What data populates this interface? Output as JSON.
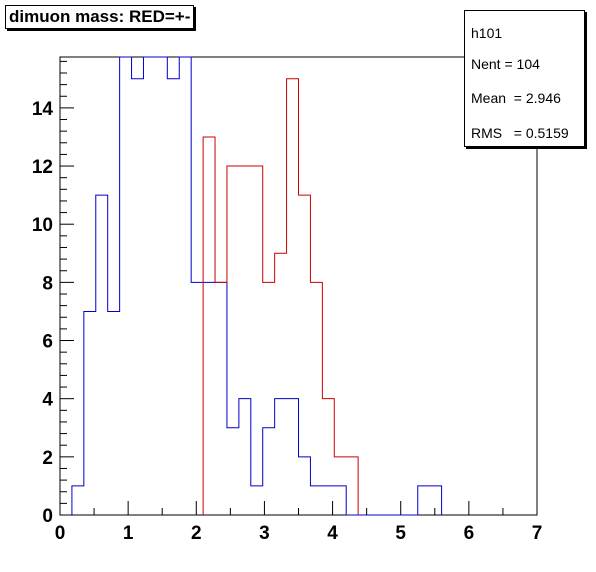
{
  "title": "dimuon mass: RED=+-",
  "stats": {
    "name": "h101",
    "rows": [
      {
        "key": "Nent",
        "sep": " = ",
        "value": "104"
      },
      {
        "key": "Mean",
        "sep": "  = ",
        "value": "2.946"
      },
      {
        "key": "RMS",
        "sep": "   = ",
        "value": "0.5159"
      }
    ]
  },
  "colors": {
    "series_blue": "#0000cc",
    "series_red": "#cc0000",
    "axis": "#000000"
  },
  "chart_data": {
    "type": "histogram",
    "title": "dimuon mass: RED=+-",
    "xlabel": "",
    "ylabel": "",
    "xlim": [
      0,
      7
    ],
    "ylim": [
      0,
      15.75
    ],
    "xticks": [
      0,
      1,
      2,
      3,
      4,
      5,
      6,
      7
    ],
    "yticks": [
      0,
      2,
      4,
      6,
      8,
      10,
      12,
      14
    ],
    "bin_width": 0.175,
    "bin_start": 0,
    "series": [
      {
        "color": "blue",
        "values": [
          0,
          1,
          7,
          11,
          7,
          16,
          15,
          16,
          16,
          15,
          16,
          8,
          8,
          8,
          3,
          4,
          1,
          3,
          4,
          4,
          2,
          1,
          1,
          1,
          0,
          0,
          0,
          0,
          0,
          0,
          1,
          1,
          0,
          0,
          0,
          0,
          0,
          0,
          0,
          0
        ]
      },
      {
        "color": "red",
        "values": [
          0,
          0,
          0,
          0,
          0,
          0,
          0,
          0,
          0,
          0,
          0,
          0,
          13,
          8,
          12,
          12,
          12,
          8,
          9,
          15,
          11,
          8,
          4,
          2,
          2,
          0,
          0,
          0,
          0,
          0,
          0,
          0,
          0,
          0,
          0,
          0,
          0,
          0,
          0,
          0
        ]
      }
    ]
  }
}
